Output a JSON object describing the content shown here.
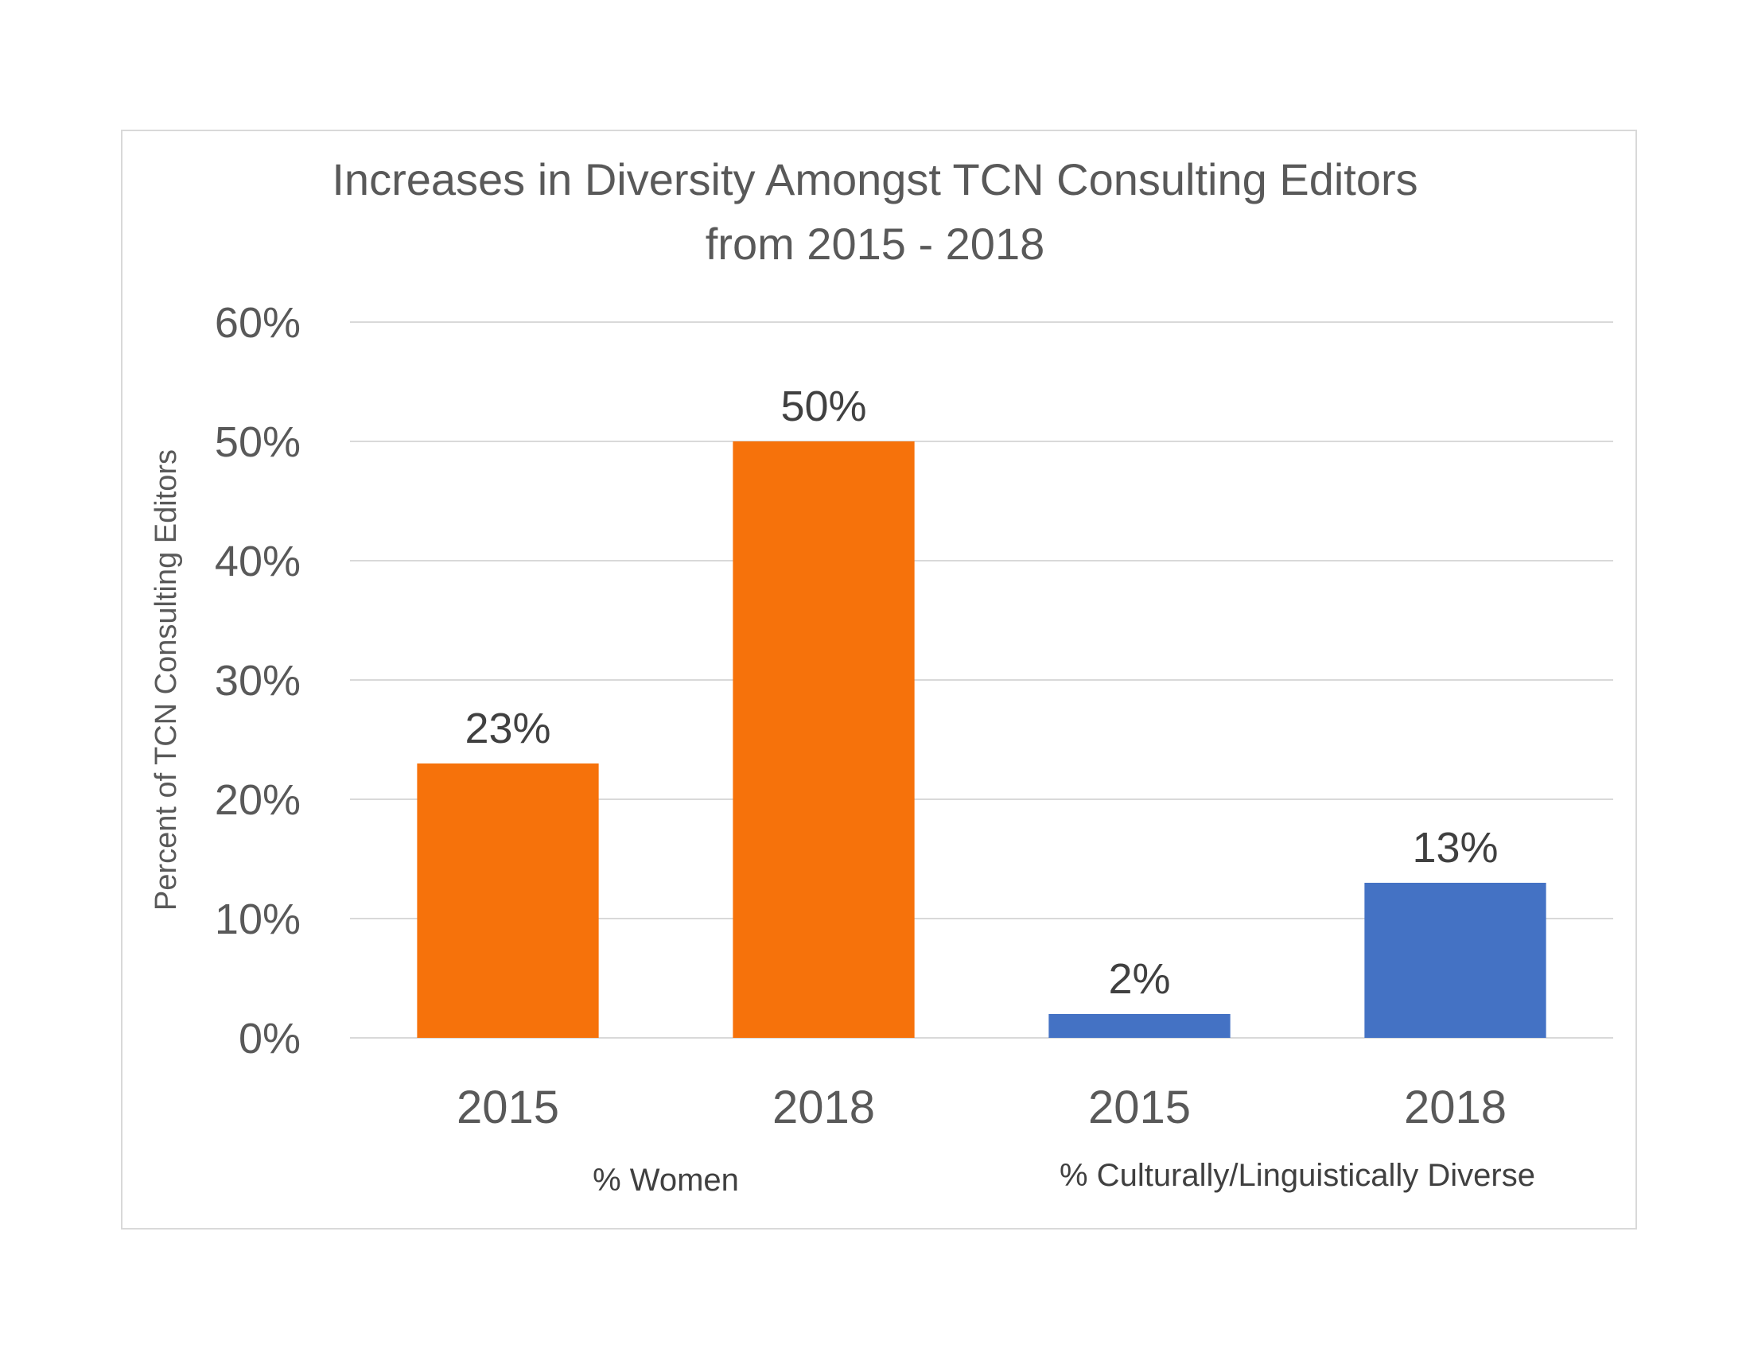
{
  "chart_data": {
    "type": "bar",
    "title_lines": [
      "Increases in Diversity Amongst TCN Consulting Editors",
      "from 2015 - 2018"
    ],
    "ylabel": "Percent of TCN Consulting Editors",
    "ylim": [
      0,
      60
    ],
    "yticks": [
      0,
      10,
      20,
      30,
      40,
      50,
      60
    ],
    "ytick_labels": [
      "0%",
      "10%",
      "20%",
      "30%",
      "40%",
      "50%",
      "60%"
    ],
    "grid": true,
    "groups": [
      {
        "name": "% Women",
        "color": "#F6720B",
        "bars": [
          {
            "category": "2015",
            "value": 23,
            "label": "23%"
          },
          {
            "category": "2018",
            "value": 50,
            "label": "50%"
          }
        ]
      },
      {
        "name": "% Culturally/Linguistically Diverse",
        "color": "#4472C4",
        "bars": [
          {
            "category": "2015",
            "value": 2,
            "label": "2%"
          },
          {
            "category": "2018",
            "value": 13,
            "label": "13%"
          }
        ]
      }
    ]
  }
}
